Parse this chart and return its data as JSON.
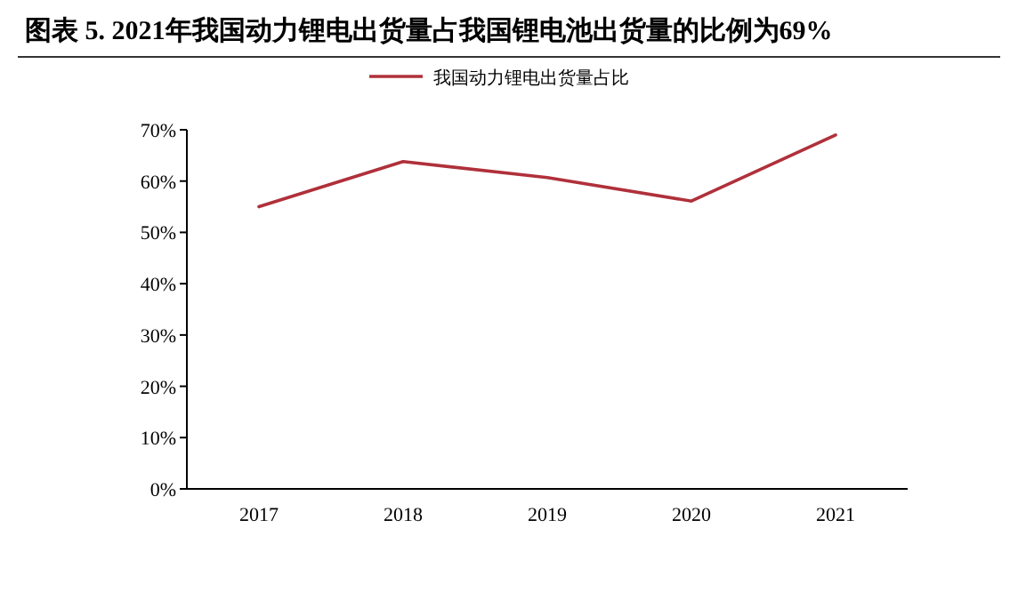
{
  "chart_data": {
    "type": "line",
    "title": "图表 5.  2021年我国动力锂电出货量占我国锂电池出货量的比例为69%",
    "categories": [
      "2017",
      "2018",
      "2019",
      "2020",
      "2021"
    ],
    "series": [
      {
        "name": "我国动力锂电出货量占比",
        "color": "#b0303a",
        "values": [
          55,
          63.8,
          60.7,
          56.1,
          69
        ]
      }
    ],
    "ylim": [
      0,
      70
    ],
    "yticks": [
      {
        "value": 0,
        "label": "0%"
      },
      {
        "value": 10,
        "label": "10%"
      },
      {
        "value": 20,
        "label": "20%"
      },
      {
        "value": 30,
        "label": "30%"
      },
      {
        "value": 40,
        "label": "40%"
      },
      {
        "value": 50,
        "label": "50%"
      },
      {
        "value": 60,
        "label": "60%"
      },
      {
        "value": 70,
        "label": "70%"
      }
    ],
    "grid": false,
    "legend": "top",
    "marker": "none",
    "line_style": "solid"
  }
}
